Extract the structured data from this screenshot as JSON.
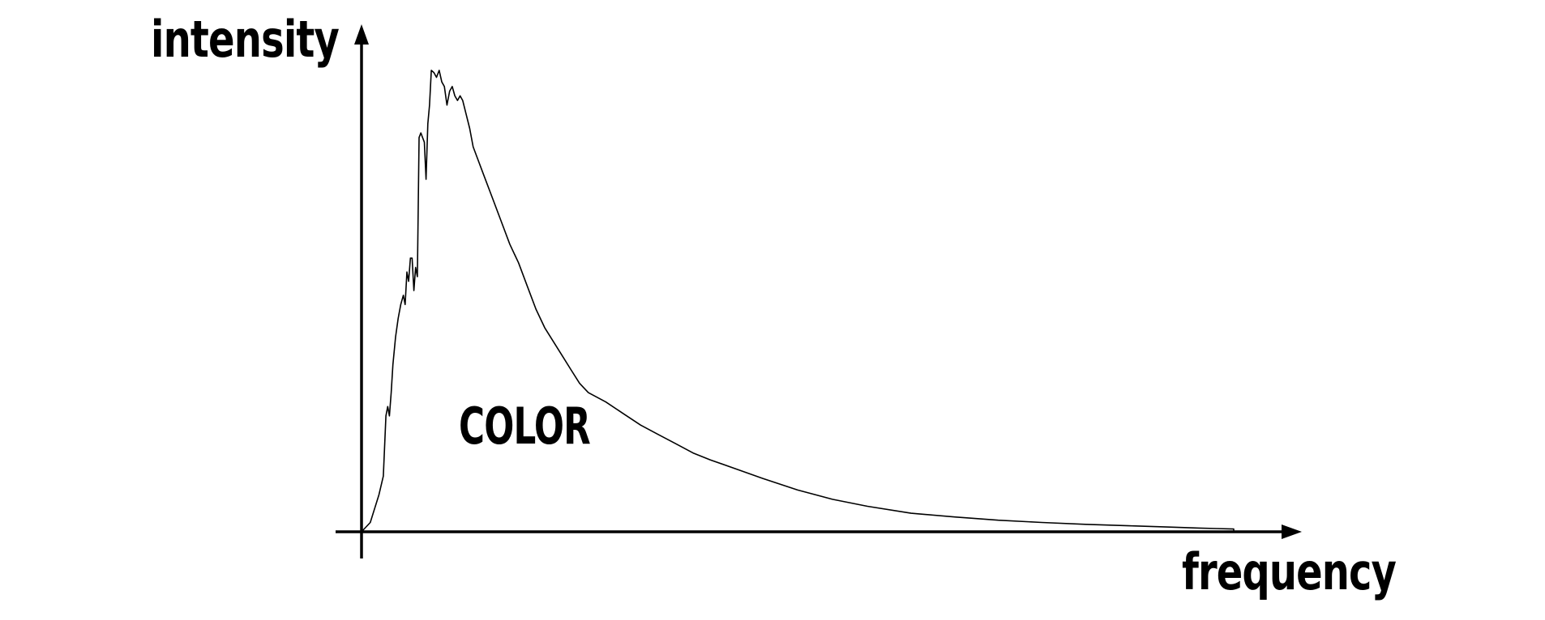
{
  "chart_data": {
    "type": "line",
    "title": "",
    "xlabel": "frequency",
    "ylabel": "intensity",
    "annotations": [
      "COLOR"
    ],
    "xlim": [
      0,
      100
    ],
    "ylim": [
      0,
      100
    ],
    "grid": false,
    "legend": "none",
    "series": [
      {
        "x": [
          0,
          1,
          2,
          2.5,
          2.8,
          3,
          3.2,
          3.4,
          3.6,
          3.9,
          4.2,
          4.5,
          4.8,
          5,
          5.2,
          5.4,
          5.6,
          5.8,
          6,
          6.2,
          6.4,
          6.6,
          6.8,
          7,
          7.2,
          7.4,
          7.6,
          7.8,
          8,
          8.3,
          8.6,
          8.9,
          9.2,
          9.5,
          9.8,
          10.1,
          10.4,
          10.7,
          11,
          11.3,
          11.6,
          12,
          12.4,
          12.8,
          13.2,
          14,
          15,
          16,
          17,
          18,
          19,
          20,
          21,
          22,
          23,
          24,
          25,
          26,
          28,
          30,
          32,
          34,
          36,
          38,
          40,
          43,
          46,
          50,
          54,
          58,
          63,
          68,
          73,
          78,
          83,
          88,
          93,
          96,
          98,
          100
        ],
        "y": [
          0,
          2,
          8,
          12,
          25,
          27,
          25,
          30,
          36,
          42,
          46,
          49,
          51,
          49,
          56,
          54,
          59,
          59,
          52,
          57,
          55,
          85,
          86,
          85,
          84,
          76,
          88,
          92,
          99.5,
          99,
          98,
          99.5,
          97,
          96,
          92,
          95,
          96,
          94,
          93,
          94,
          93,
          90,
          87,
          83,
          81,
          77,
          72,
          67,
          62,
          58,
          53,
          48,
          44,
          41,
          38,
          35,
          32,
          30,
          28,
          25.5,
          23,
          21,
          19,
          17,
          15.5,
          13.5,
          11.5,
          9,
          7,
          5.5,
          4,
          3.2,
          2.5,
          2,
          1.6,
          1.3,
          1,
          0.8,
          0.7,
          0.6
        ]
      }
    ],
    "colors": {
      "line": "#000000",
      "background": "#ffffff"
    }
  }
}
